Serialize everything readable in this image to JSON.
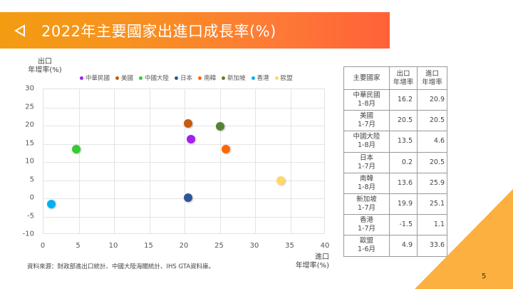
{
  "header": {
    "title": "2022年主要國家出進口成長率(%)",
    "back_icon": "triangle-left-outline-icon",
    "gradient_start": "#f39c12",
    "gradient_end": "#ff6138"
  },
  "chart_data": {
    "type": "scatter",
    "title": "2022年主要國家出進口成長率(%)",
    "xlabel": "進口年增率(%)",
    "ylabel": "出口年增率(%)",
    "xlim": [
      0,
      40
    ],
    "ylim": [
      -10,
      30
    ],
    "x_ticks": [
      0,
      5,
      10,
      15,
      20,
      25,
      30,
      35,
      40
    ],
    "y_ticks": [
      30,
      25,
      20,
      15,
      10,
      5,
      0,
      -5,
      -10
    ],
    "grid": true,
    "legend_position": "top",
    "series": [
      {
        "name": "中華民國",
        "x": 20.9,
        "y": 16.2,
        "color": "#a020f0"
      },
      {
        "name": "美國",
        "x": 20.5,
        "y": 20.5,
        "color": "#c55a11"
      },
      {
        "name": "中國大陸",
        "x": 4.6,
        "y": 13.5,
        "color": "#33cc33"
      },
      {
        "name": "日本",
        "x": 20.5,
        "y": 0.2,
        "color": "#2f5597"
      },
      {
        "name": "南韓",
        "x": 25.9,
        "y": 13.6,
        "color": "#ff6600"
      },
      {
        "name": "新加坡",
        "x": 25.1,
        "y": 19.9,
        "color": "#548235"
      },
      {
        "name": "香港",
        "x": 1.1,
        "y": -1.5,
        "color": "#00b0f0"
      },
      {
        "name": "歐盟",
        "x": 33.6,
        "y": 4.9,
        "color": "#ffd966"
      }
    ]
  },
  "chart_labels": {
    "ylabel_line1": "出口",
    "ylabel_line2": "年增率(%)",
    "xlabel_line1": "進口",
    "xlabel_line2": "年增率(%)"
  },
  "source_note": "資料來源：財政部進出口統計、中國大陸海關統計、IHS GTA資料庫。",
  "table": {
    "headers": {
      "country": "主要國家",
      "export_line1": "出口",
      "export_line2": "年增率",
      "import_line1": "進口",
      "import_line2": "年增率"
    },
    "rows": [
      {
        "country": "中華民國",
        "period": "1-8月",
        "export": "16.2",
        "import": "20.9"
      },
      {
        "country": "美國",
        "period": "1-7月",
        "export": "20.5",
        "import": "20.5"
      },
      {
        "country": "中國大陸",
        "period": "1-8月",
        "export": "13.5",
        "import": "4.6"
      },
      {
        "country": "日本",
        "period": "1-7月",
        "export": "0.2",
        "import": "20.5"
      },
      {
        "country": "南韓",
        "period": "1-8月",
        "export": "13.6",
        "import": "25.9"
      },
      {
        "country": "新加坡",
        "period": "1-7月",
        "export": "19.9",
        "import": "25.1"
      },
      {
        "country": "香港",
        "period": "1-7月",
        "export": "-1.5",
        "import": "1.1"
      },
      {
        "country": "歐盟",
        "period": "1-6月",
        "export": "4.9",
        "import": "33.6"
      }
    ]
  },
  "footer": {
    "page_number": "5",
    "accent_color": "#fbb040"
  }
}
